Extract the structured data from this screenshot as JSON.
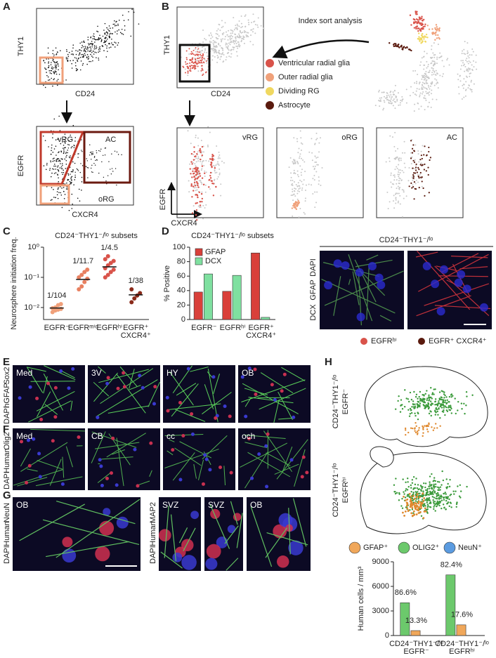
{
  "panels": {
    "A": {
      "letter": "A",
      "top": {
        "y_label": "THY1",
        "x_label": "CD24"
      },
      "bottom": {
        "y_label": "EGFR",
        "x_label": "CXCR4",
        "gates": [
          "vRG",
          "AC",
          "oRG"
        ]
      }
    },
    "B": {
      "letter": "B",
      "top": {
        "y_label": "THY1",
        "x_label": "CD24"
      },
      "arrow_label": "Index sort analysis",
      "legend": [
        {
          "label": "Ventricular radial glia",
          "color": "#d9534a"
        },
        {
          "label": "Outer radial glia",
          "color": "#f0a17a"
        },
        {
          "label": "Dividing RG",
          "color": "#f0d860"
        },
        {
          "label": "Astrocyte",
          "color": "#5a1a0e"
        }
      ],
      "subplots": [
        "vRG",
        "oRG",
        "AC"
      ],
      "axes": {
        "y_label": "EGFR",
        "x_label": "CXCR4"
      }
    },
    "C": {
      "letter": "C"
    },
    "D": {
      "letter": "D",
      "image_title": "CD24⁻THY1⁻/ˡᵒ",
      "image_channels": [
        "DCX",
        "GFAP",
        "DAPI"
      ],
      "image_legend": [
        "EGFRʰⁱ",
        "EGFR⁺ CXCR4⁺"
      ]
    },
    "E": {
      "letter": "E",
      "channels": [
        "DAPI",
        "hGFAP",
        "Sox2"
      ],
      "images": [
        "Med",
        "3V",
        "HY",
        "OB"
      ]
    },
    "F": {
      "letter": "F",
      "channels": [
        "DAPI",
        "Human",
        "Olig2"
      ],
      "images": [
        "Med",
        "CB",
        "cc",
        "och"
      ]
    },
    "G": {
      "letter": "G",
      "groups": [
        {
          "channels": [
            "DAPI",
            "Human",
            "NeuN"
          ],
          "images": [
            "OB"
          ]
        },
        {
          "channels": [
            "DAPI",
            "Human",
            "MAP2"
          ],
          "images": [
            "SVZ",
            "SVZ",
            "OB"
          ]
        }
      ]
    },
    "H": {
      "letter": "H",
      "brains": [
        [
          "CD24⁻THY1⁻/ˡᵒ",
          "EGFR⁻"
        ],
        [
          "CD24⁻THY1⁻/ˡᵒ",
          "EGFRʰⁱ"
        ]
      ]
    }
  },
  "chart_data": [
    {
      "type": "scatter",
      "title": "CD24⁻THY1⁻/ˡᵒ subsets",
      "y_label": "Neurosphere initiation freq.",
      "categories": [
        "EGFR⁻",
        "EGFRᵐⁱᵈ",
        "EGFRʰⁱ",
        [
          "EGFR⁺",
          "CXCR4⁺"
        ]
      ],
      "values": [
        0.009615,
        0.08547,
        0.2222,
        0.02632
      ],
      "value_labels": [
        "1/104",
        "1/11.7",
        "1/4.5",
        "1/38"
      ],
      "points": [
        [
          0.007,
          0.008,
          0.0085,
          0.009,
          0.0095,
          0.01,
          0.012,
          0.013
        ],
        [
          0.04,
          0.05,
          0.07,
          0.09,
          0.1,
          0.12,
          0.15,
          0.18
        ],
        [
          0.1,
          0.12,
          0.15,
          0.18,
          0.2,
          0.25,
          0.3,
          0.35,
          0.4,
          0.5
        ],
        [
          0.015,
          0.02,
          0.025,
          0.03,
          0.04
        ]
      ],
      "colors": [
        "#f0a07a",
        "#e88060",
        "#d9534a",
        "#8a2a1a"
      ],
      "log": true,
      "ylim": [
        0.004,
        1
      ],
      "yticks": [
        {
          "value": 0.01,
          "label": "10⁻²"
        },
        {
          "value": 0.1,
          "label": "10⁻¹"
        },
        {
          "value": 1,
          "label": "10⁰"
        }
      ]
    },
    {
      "type": "bar",
      "title": "CD24⁻THY1⁻/ˡᵒ subsets",
      "y_label": "% Positive",
      "categories": [
        "EGFR⁻",
        "EGFRʰⁱ",
        [
          "EGFR⁺",
          "CXCR4⁺"
        ]
      ],
      "series": [
        {
          "name": "GFAP",
          "color": "#d9403a",
          "values": [
            38,
            39,
            92
          ]
        },
        {
          "name": "DCX",
          "color": "#7fe0a0",
          "values": [
            63,
            61,
            3
          ]
        }
      ],
      "ylim": [
        0,
        100
      ],
      "yticks": [
        0,
        20,
        40,
        60,
        80,
        100
      ]
    },
    {
      "type": "bar",
      "y_label": "Human cells / mm³",
      "categories": [
        [
          "CD24⁻THY1⁻/ˡᵒ",
          "EGFR⁻"
        ],
        [
          "CD24⁻THY1⁻/ˡᵒ",
          "EGFRʰⁱ"
        ]
      ],
      "series": [
        {
          "name": "OLIG2⁺",
          "color": "#6cc96c",
          "values": [
            4000,
            7400
          ]
        },
        {
          "name": "GFAP⁺",
          "color": "#f0a75a",
          "values": [
            600,
            1300
          ]
        },
        {
          "name": "NeuN⁺",
          "color": "#5b9be0",
          "values": [
            0,
            0
          ]
        }
      ],
      "annotations": [
        [
          "86.6%",
          "82.4%"
        ],
        [
          "13.3%",
          "17.6%"
        ]
      ],
      "ylim": [
        0,
        9000
      ],
      "yticks": [
        0,
        3000,
        6000,
        9000
      ]
    }
  ]
}
